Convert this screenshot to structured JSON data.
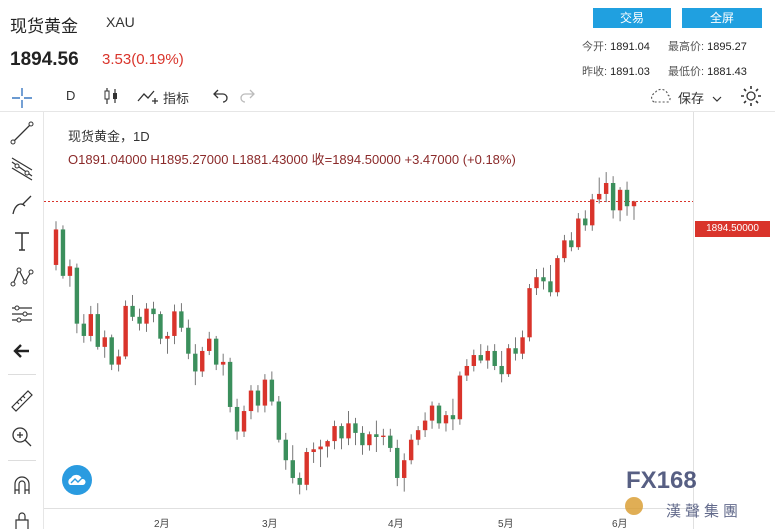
{
  "header": {
    "title": "现货黄金",
    "symbol": "XAU",
    "price": "1894.56",
    "change": "3.53(0.19%)"
  },
  "buttons": {
    "trade": "交易",
    "fullscreen": "全屏"
  },
  "stats": {
    "open_label": "今开:",
    "open_value": "1891.04",
    "high_label": "最高价:",
    "high_value": "1895.27",
    "prev_close_label": "昨收:",
    "prev_close_value": "1891.03",
    "low_label": "最低价:",
    "low_value": "1881.43"
  },
  "toolbar": {
    "interval": "D",
    "indicators": "指标",
    "save": "保存"
  },
  "legend": {
    "title": "现货黄金，1D",
    "ohlc": "O1891.04000  H1895.27000  L1881.43000  收=1894.50000  +3.47000 (+0.18%)"
  },
  "price_marker": "1894.50000",
  "time_ticks": [
    "2月",
    "3月",
    "4月",
    "5月",
    "6月"
  ],
  "watermark": {
    "brand": "FX168",
    "sub": "漢聲集團"
  },
  "colors": {
    "up": "#d9342b",
    "down": "#3b8f5c",
    "accent": "#20a0e0"
  },
  "icons": {
    "crosshair": "crosshair-icon",
    "trendline": "trendline-icon",
    "fib": "fib-icon",
    "brush": "brush-icon",
    "text": "text-icon",
    "pattern": "pattern-icon",
    "prediction": "prediction-icon",
    "back": "arrow-left-icon",
    "ruler": "ruler-icon",
    "zoom": "zoom-in-icon",
    "magnet": "magnet-icon",
    "settings": "gear-icon",
    "cloud": "cloud-icon"
  },
  "chart_data": {
    "type": "candlestick",
    "symbol": "XAU",
    "interval": "1D",
    "last_close": 1894.5,
    "ylim": [
      1670,
      1960
    ],
    "x_ticks": [
      "2月",
      "3月",
      "4月",
      "5月",
      "6月"
    ],
    "candles": [
      [
        1848,
        1880,
        1844,
        1874
      ],
      [
        1874,
        1877,
        1838,
        1840
      ],
      [
        1840,
        1852,
        1832,
        1847
      ],
      [
        1846,
        1849,
        1798,
        1805
      ],
      [
        1805,
        1812,
        1791,
        1796
      ],
      [
        1796,
        1818,
        1792,
        1812
      ],
      [
        1812,
        1820,
        1786,
        1788
      ],
      [
        1788,
        1800,
        1780,
        1795
      ],
      [
        1795,
        1797,
        1771,
        1775
      ],
      [
        1775,
        1786,
        1770,
        1781
      ],
      [
        1781,
        1822,
        1779,
        1818
      ],
      [
        1818,
        1826,
        1807,
        1810
      ],
      [
        1810,
        1816,
        1800,
        1805
      ],
      [
        1805,
        1820,
        1799,
        1816
      ],
      [
        1816,
        1821,
        1806,
        1812
      ],
      [
        1812,
        1814,
        1790,
        1794
      ],
      [
        1794,
        1799,
        1783,
        1796
      ],
      [
        1796,
        1819,
        1790,
        1814
      ],
      [
        1814,
        1820,
        1799,
        1802
      ],
      [
        1802,
        1808,
        1779,
        1783
      ],
      [
        1783,
        1790,
        1760,
        1770
      ],
      [
        1770,
        1788,
        1766,
        1785
      ],
      [
        1785,
        1799,
        1782,
        1794
      ],
      [
        1794,
        1796,
        1771,
        1775
      ],
      [
        1775,
        1783,
        1767,
        1777
      ],
      [
        1777,
        1780,
        1740,
        1744
      ],
      [
        1744,
        1750,
        1720,
        1726
      ],
      [
        1726,
        1745,
        1722,
        1741
      ],
      [
        1741,
        1760,
        1735,
        1756
      ],
      [
        1756,
        1760,
        1740,
        1745
      ],
      [
        1745,
        1768,
        1740,
        1764
      ],
      [
        1764,
        1770,
        1745,
        1748
      ],
      [
        1748,
        1752,
        1718,
        1720
      ],
      [
        1720,
        1725,
        1698,
        1705
      ],
      [
        1705,
        1716,
        1688,
        1692
      ],
      [
        1692,
        1696,
        1680,
        1687
      ],
      [
        1687,
        1714,
        1683,
        1711
      ],
      [
        1711,
        1718,
        1703,
        1713
      ],
      [
        1713,
        1720,
        1700,
        1715
      ],
      [
        1715,
        1720,
        1707,
        1719
      ],
      [
        1719,
        1734,
        1713,
        1730
      ],
      [
        1730,
        1732,
        1713,
        1721
      ],
      [
        1721,
        1741,
        1716,
        1732
      ],
      [
        1732,
        1736,
        1716,
        1725
      ],
      [
        1725,
        1730,
        1709,
        1716
      ],
      [
        1716,
        1726,
        1712,
        1724
      ],
      [
        1724,
        1734,
        1711,
        1722
      ],
      [
        1722,
        1728,
        1716,
        1723
      ],
      [
        1723,
        1728,
        1711,
        1714
      ],
      [
        1714,
        1720,
        1686,
        1692
      ],
      [
        1692,
        1710,
        1682,
        1705
      ],
      [
        1705,
        1724,
        1702,
        1720
      ],
      [
        1720,
        1730,
        1716,
        1727
      ],
      [
        1727,
        1740,
        1722,
        1734
      ],
      [
        1734,
        1748,
        1728,
        1745
      ],
      [
        1745,
        1747,
        1728,
        1732
      ],
      [
        1732,
        1741,
        1726,
        1738
      ],
      [
        1738,
        1750,
        1727,
        1735
      ],
      [
        1735,
        1770,
        1731,
        1767
      ],
      [
        1767,
        1779,
        1763,
        1774
      ],
      [
        1774,
        1786,
        1770,
        1782
      ],
      [
        1782,
        1790,
        1776,
        1778
      ],
      [
        1778,
        1789,
        1772,
        1785
      ],
      [
        1785,
        1790,
        1771,
        1774
      ],
      [
        1774,
        1785,
        1762,
        1768
      ],
      [
        1768,
        1790,
        1766,
        1787
      ],
      [
        1787,
        1795,
        1778,
        1783
      ],
      [
        1783,
        1800,
        1779,
        1795
      ],
      [
        1795,
        1834,
        1792,
        1831
      ],
      [
        1831,
        1845,
        1826,
        1839
      ],
      [
        1839,
        1846,
        1830,
        1836
      ],
      [
        1836,
        1848,
        1825,
        1828
      ],
      [
        1828,
        1855,
        1825,
        1853
      ],
      [
        1853,
        1870,
        1850,
        1866
      ],
      [
        1866,
        1872,
        1858,
        1861
      ],
      [
        1861,
        1886,
        1859,
        1882
      ],
      [
        1882,
        1888,
        1873,
        1877
      ],
      [
        1877,
        1900,
        1873,
        1896
      ],
      [
        1896,
        1912,
        1893,
        1900
      ],
      [
        1900,
        1916,
        1894,
        1908
      ],
      [
        1908,
        1913,
        1882,
        1888
      ],
      [
        1888,
        1905,
        1880,
        1903
      ],
      [
        1903,
        1909,
        1884,
        1891
      ],
      [
        1891,
        1895,
        1881,
        1894.5
      ]
    ]
  }
}
